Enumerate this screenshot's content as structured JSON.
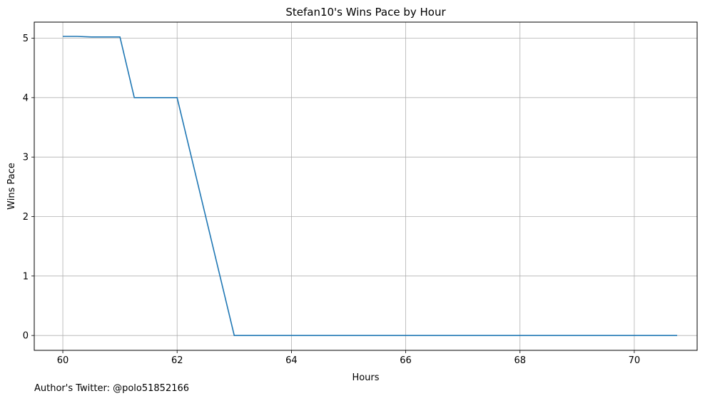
{
  "chart_data": {
    "type": "line",
    "title": "Stefan10's Wins Pace by Hour",
    "xlabel": "Hours",
    "ylabel": "Wins Pace",
    "xlim": [
      59.5,
      71.1
    ],
    "ylim": [
      -0.25,
      5.27
    ],
    "xticks": [
      60,
      62,
      64,
      66,
      68,
      70
    ],
    "yticks": [
      0,
      1,
      2,
      3,
      4,
      5
    ],
    "grid": true,
    "series": [
      {
        "color": "#1f77b4",
        "x": [
          60.0,
          60.25,
          60.5,
          60.75,
          61.0,
          61.25,
          61.5,
          61.75,
          62.0,
          63.0,
          64.0,
          65.0,
          66.0,
          67.0,
          68.0,
          69.0,
          70.0,
          70.75
        ],
        "y": [
          5.03,
          5.03,
          5.02,
          5.02,
          5.02,
          4.0,
          4.0,
          4.0,
          4.0,
          0.0,
          0.0,
          0.0,
          0.0,
          0.0,
          0.0,
          0.0,
          0.0,
          0.0
        ]
      }
    ]
  },
  "footer": "Author's Twitter: @polo51852166"
}
